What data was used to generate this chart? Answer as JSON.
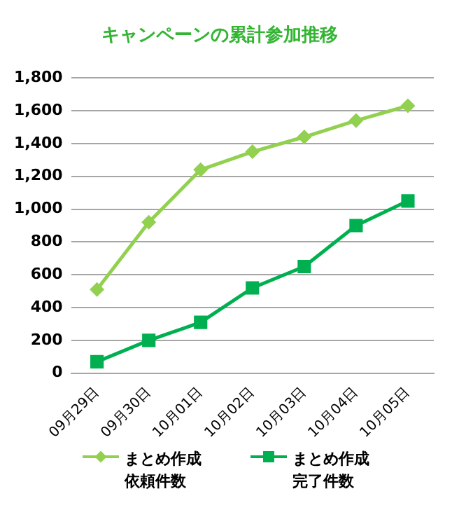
{
  "chart_data": {
    "type": "line",
    "title": "キャンペーンの累計参加推移",
    "categories": [
      "09月29日",
      "09月30日",
      "10月01日",
      "10月02日",
      "10月03日",
      "10月04日",
      "10月05日"
    ],
    "series": [
      {
        "name": "まとめ作成依頼件数",
        "color": "#92d050",
        "marker": "diamond",
        "values": [
          510,
          920,
          1240,
          1350,
          1440,
          1540,
          1630
        ]
      },
      {
        "name": "まとめ作成完了件数",
        "color": "#00b050",
        "marker": "square",
        "values": [
          70,
          200,
          310,
          520,
          650,
          900,
          1050
        ]
      }
    ],
    "ylim": [
      0,
      1800
    ],
    "yticks": [
      0,
      200,
      400,
      600,
      800,
      {
        "value": 1000,
        "label": "1,000"
      },
      {
        "value": 1200,
        "label": "1,200"
      },
      {
        "value": 1400,
        "label": "1,400"
      },
      {
        "value": 1600,
        "label": "1,600"
      },
      {
        "value": 1800,
        "label": "1,800"
      }
    ],
    "grid": "y",
    "legend": "bottom"
  }
}
